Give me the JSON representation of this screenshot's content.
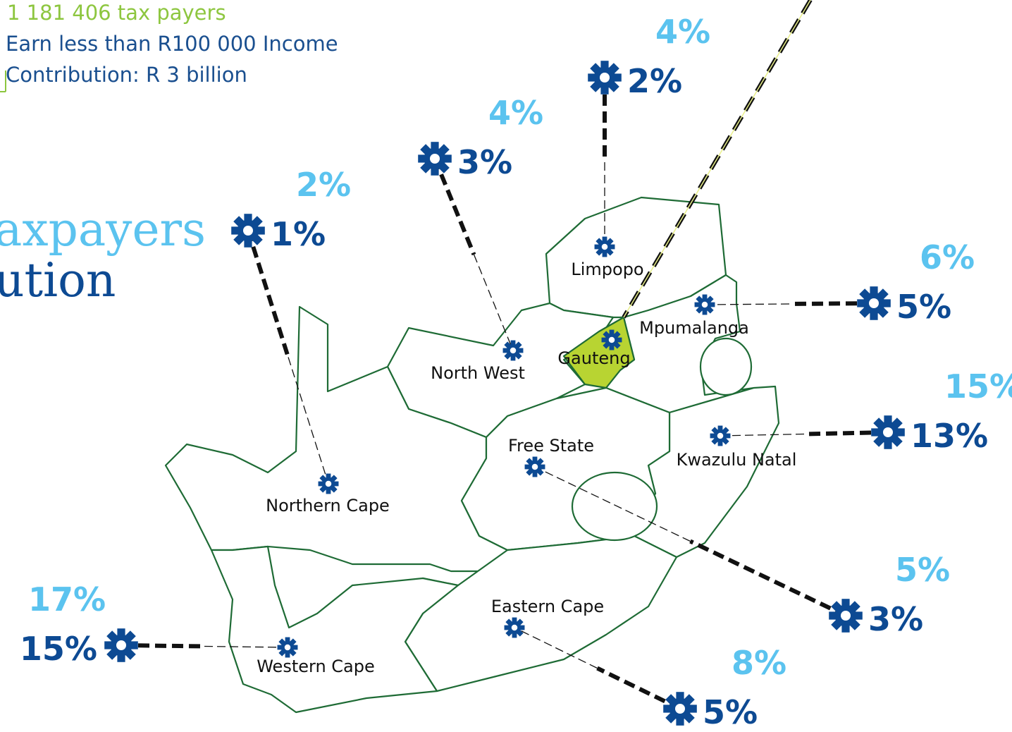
{
  "header": {
    "line1": "1 181 406 tax payers",
    "line2": "Earn less than R100 000 Income",
    "line3": "Contribution: R 3 billion"
  },
  "title": {
    "line1": "axpayers",
    "line2": "ution"
  },
  "regions": [
    {
      "name": "Limpopo",
      "upper": "4%",
      "lower": "2%"
    },
    {
      "name": "North West",
      "upper": "4%",
      "lower": "3%"
    },
    {
      "name": "Northern Cape",
      "upper": "2%",
      "lower": "1%"
    },
    {
      "name": "Mpumalanga",
      "upper": "6%",
      "lower": "5%"
    },
    {
      "name": "Kwazulu Natal",
      "upper": "15%",
      "lower": "13%"
    },
    {
      "name": "Free State",
      "upper": "5%",
      "lower": "3%"
    },
    {
      "name": "Eastern Cape",
      "upper": "8%",
      "lower": "5%"
    },
    {
      "name": "Western Cape",
      "upper": "17%",
      "lower": "15%"
    },
    {
      "name": "Gauteng"
    }
  ]
}
